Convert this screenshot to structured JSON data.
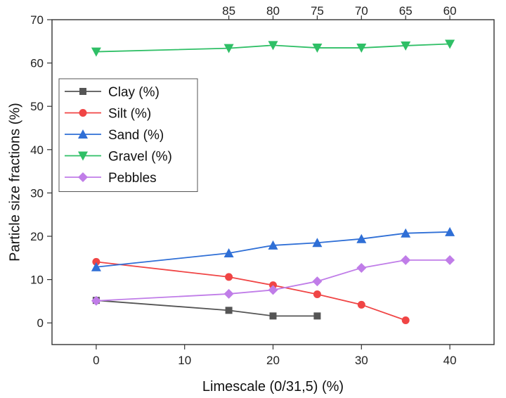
{
  "chart_data": {
    "type": "line",
    "xlabel": "Limescale (0/31,5) (%)",
    "ylabel": "Particle size fractions (%)",
    "xlim": [
      -5,
      45
    ],
    "ylim": [
      -5,
      70
    ],
    "xticks": [
      0,
      10,
      20,
      30,
      40
    ],
    "yticks": [
      0,
      10,
      20,
      30,
      40,
      50,
      60,
      70
    ],
    "top_axis": {
      "ticks": [
        {
          "x": 15,
          "label": "85"
        },
        {
          "x": 20,
          "label": "80"
        },
        {
          "x": 25,
          "label": "75"
        },
        {
          "x": 30,
          "label": "70"
        },
        {
          "x": 35,
          "label": "65"
        },
        {
          "x": 40,
          "label": "60"
        }
      ]
    },
    "legend_position": "upper-left",
    "grid": false,
    "series": [
      {
        "name": "Clay (%)",
        "color": "#555555",
        "marker": "square",
        "points": [
          [
            0,
            5.2
          ],
          [
            15,
            2.9
          ],
          [
            20,
            1.6
          ],
          [
            25,
            1.6
          ]
        ]
      },
      {
        "name": "Silt (%)",
        "color": "#f04545",
        "marker": "circle",
        "points": [
          [
            0,
            14.1
          ],
          [
            15,
            10.6
          ],
          [
            20,
            8.7
          ],
          [
            25,
            6.6
          ],
          [
            30,
            4.2
          ],
          [
            35,
            0.6
          ]
        ]
      },
      {
        "name": "Sand (%)",
        "color": "#2f6fd6",
        "marker": "triangle-up",
        "points": [
          [
            0,
            12.9
          ],
          [
            15,
            16.1
          ],
          [
            20,
            17.9
          ],
          [
            25,
            18.5
          ],
          [
            30,
            19.4
          ],
          [
            35,
            20.7
          ],
          [
            40,
            21.0
          ]
        ]
      },
      {
        "name": "Gravel (%)",
        "color": "#2fbf66",
        "marker": "triangle-down",
        "points": [
          [
            0,
            62.6
          ],
          [
            15,
            63.4
          ],
          [
            20,
            64.1
          ],
          [
            25,
            63.5
          ],
          [
            30,
            63.5
          ],
          [
            35,
            64.0
          ],
          [
            40,
            64.4
          ]
        ]
      },
      {
        "name": "Pebbles",
        "color": "#c07de8",
        "marker": "diamond",
        "points": [
          [
            0,
            5.1
          ],
          [
            15,
            6.7
          ],
          [
            20,
            7.6
          ],
          [
            25,
            9.6
          ],
          [
            30,
            12.7
          ],
          [
            35,
            14.5
          ],
          [
            40,
            14.5
          ]
        ]
      }
    ]
  }
}
